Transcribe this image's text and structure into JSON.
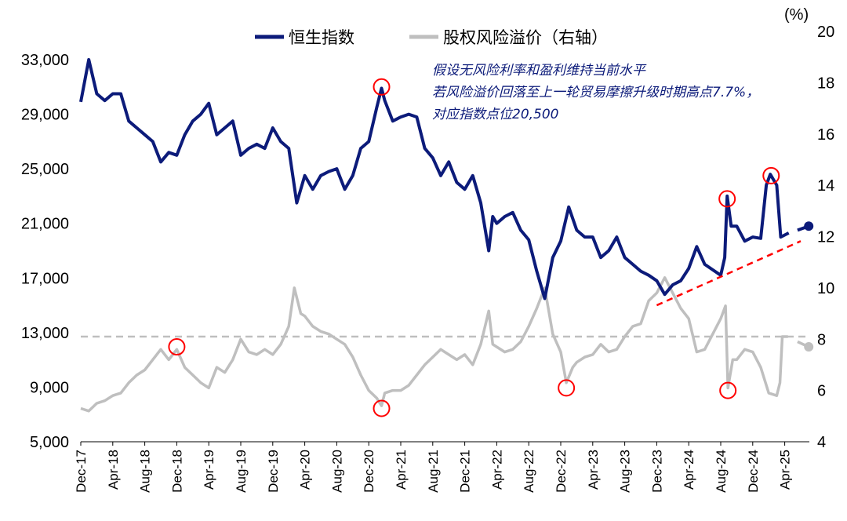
{
  "chart_data": {
    "type": "line",
    "title": "",
    "unit_right": "(%)",
    "x_unit": "months since Dec-17",
    "x_tick_labels": [
      "Dec-17",
      "Apr-18",
      "Aug-18",
      "Dec-18",
      "Apr-19",
      "Aug-19",
      "Dec-19",
      "Apr-20",
      "Aug-20",
      "Dec-20",
      "Apr-21",
      "Aug-21",
      "Dec-21",
      "Apr-22",
      "Aug-22",
      "Dec-22",
      "Apr-23",
      "Aug-23",
      "Dec-23",
      "Apr-24",
      "Aug-24",
      "Dec-24",
      "Apr-25"
    ],
    "y_left": {
      "ticks": [
        "5,000",
        "9,000",
        "13,000",
        "17,000",
        "21,000",
        "25,000",
        "29,000",
        "33,000"
      ],
      "range": [
        5000,
        33000
      ]
    },
    "y_right": {
      "ticks": [
        "4",
        "6",
        "8",
        "10",
        "12",
        "14",
        "16",
        "18",
        "20"
      ],
      "range": [
        4,
        20
      ]
    },
    "legend": {
      "placement": "top-center"
    },
    "series": [
      {
        "name": "恒生指数",
        "axis": "left",
        "color": "#0c1b7a",
        "points": [
          [
            0,
            29900
          ],
          [
            1,
            33000
          ],
          [
            2,
            30500
          ],
          [
            3,
            30000
          ],
          [
            4,
            30500
          ],
          [
            5,
            30500
          ],
          [
            6,
            28500
          ],
          [
            7,
            28000
          ],
          [
            8,
            27500
          ],
          [
            9,
            27000
          ],
          [
            10,
            25500
          ],
          [
            11,
            26200
          ],
          [
            12,
            26000
          ],
          [
            13,
            27500
          ],
          [
            14,
            28500
          ],
          [
            15,
            29000
          ],
          [
            16,
            29800
          ],
          [
            17,
            27500
          ],
          [
            18,
            28000
          ],
          [
            19,
            28500
          ],
          [
            20,
            26000
          ],
          [
            21,
            26500
          ],
          [
            22,
            26800
          ],
          [
            23,
            26500
          ],
          [
            24,
            28000
          ],
          [
            25,
            27000
          ],
          [
            26,
            26500
          ],
          [
            27,
            22500
          ],
          [
            28,
            24500
          ],
          [
            29,
            23500
          ],
          [
            30,
            24500
          ],
          [
            31,
            24800
          ],
          [
            32,
            25000
          ],
          [
            33,
            23500
          ],
          [
            34,
            24500
          ],
          [
            35,
            26500
          ],
          [
            36,
            27000
          ],
          [
            37,
            29500
          ],
          [
            37.6,
            30900
          ],
          [
            38,
            30000
          ],
          [
            39,
            28500
          ],
          [
            40,
            28800
          ],
          [
            41,
            29000
          ],
          [
            42,
            28800
          ],
          [
            43,
            26500
          ],
          [
            44,
            25800
          ],
          [
            45,
            24500
          ],
          [
            46,
            25500
          ],
          [
            47,
            24000
          ],
          [
            48,
            23500
          ],
          [
            49,
            24500
          ],
          [
            50,
            22500
          ],
          [
            51,
            19000
          ],
          [
            51.5,
            21500
          ],
          [
            52,
            21000
          ],
          [
            53,
            21500
          ],
          [
            54,
            21800
          ],
          [
            55,
            20500
          ],
          [
            56,
            19800
          ],
          [
            57,
            17500
          ],
          [
            58,
            15500
          ],
          [
            59,
            18500
          ],
          [
            60,
            19700
          ],
          [
            61,
            22200
          ],
          [
            62,
            20500
          ],
          [
            63,
            20000
          ],
          [
            64,
            20000
          ],
          [
            65,
            18500
          ],
          [
            66,
            19000
          ],
          [
            67,
            20000
          ],
          [
            68,
            18500
          ],
          [
            69,
            18000
          ],
          [
            70,
            17500
          ],
          [
            71,
            17200
          ],
          [
            72,
            16800
          ],
          [
            73,
            15800
          ],
          [
            74,
            16500
          ],
          [
            75,
            16800
          ],
          [
            76,
            17700
          ],
          [
            77,
            19300
          ],
          [
            78,
            18000
          ],
          [
            79,
            17600
          ],
          [
            80,
            17200
          ],
          [
            80.5,
            18500
          ],
          [
            80.8,
            23000
          ],
          [
            81.3,
            20800
          ],
          [
            82,
            20800
          ],
          [
            83,
            19700
          ],
          [
            84,
            20000
          ],
          [
            85,
            19900
          ],
          [
            85.7,
            23800
          ],
          [
            86.2,
            24600
          ],
          [
            87,
            23800
          ],
          [
            87.5,
            20000
          ],
          [
            88.5,
            20300
          ],
          [
            null,
            null
          ],
          [
            89.6,
            20500
          ],
          [
            91,
            20800
          ]
        ]
      },
      {
        "name": "股权风险溢价（右轴）",
        "axis": "right",
        "color": "#bfbfbf",
        "points": [
          [
            0,
            5.3
          ],
          [
            1,
            5.2
          ],
          [
            2,
            5.5
          ],
          [
            3,
            5.6
          ],
          [
            4,
            5.8
          ],
          [
            5,
            5.9
          ],
          [
            6,
            6.3
          ],
          [
            7,
            6.6
          ],
          [
            8,
            6.8
          ],
          [
            9,
            7.2
          ],
          [
            10,
            7.6
          ],
          [
            11,
            7.2
          ],
          [
            12,
            7.6
          ],
          [
            13,
            6.9
          ],
          [
            14,
            6.6
          ],
          [
            15,
            6.3
          ],
          [
            16,
            6.1
          ],
          [
            17,
            6.9
          ],
          [
            18,
            6.7
          ],
          [
            19,
            7.2
          ],
          [
            20,
            8.0
          ],
          [
            21,
            7.5
          ],
          [
            22,
            7.4
          ],
          [
            23,
            7.6
          ],
          [
            24,
            7.4
          ],
          [
            25,
            7.8
          ],
          [
            26,
            8.5
          ],
          [
            26.7,
            10.0
          ],
          [
            27.5,
            9.0
          ],
          [
            28,
            8.9
          ],
          [
            29,
            8.5
          ],
          [
            30,
            8.3
          ],
          [
            31,
            8.2
          ],
          [
            32,
            8.0
          ],
          [
            33,
            7.8
          ],
          [
            34,
            7.3
          ],
          [
            35,
            6.6
          ],
          [
            36,
            6.0
          ],
          [
            37,
            5.7
          ],
          [
            37.6,
            5.4
          ],
          [
            38,
            5.9
          ],
          [
            39,
            6.0
          ],
          [
            40,
            6.0
          ],
          [
            41,
            6.2
          ],
          [
            42,
            6.6
          ],
          [
            43,
            7.0
          ],
          [
            44,
            7.3
          ],
          [
            45,
            7.6
          ],
          [
            46,
            7.4
          ],
          [
            47,
            7.2
          ],
          [
            48,
            7.4
          ],
          [
            49,
            7.0
          ],
          [
            50,
            7.8
          ],
          [
            51,
            9.1
          ],
          [
            51.5,
            7.8
          ],
          [
            52,
            7.7
          ],
          [
            53,
            7.5
          ],
          [
            54,
            7.6
          ],
          [
            55,
            7.9
          ],
          [
            56,
            8.5
          ],
          [
            57,
            9.2
          ],
          [
            58,
            10.0
          ],
          [
            59,
            8.2
          ],
          [
            60,
            7.5
          ],
          [
            60.7,
            6.3
          ],
          [
            61.5,
            6.9
          ],
          [
            62,
            7.1
          ],
          [
            63,
            7.3
          ],
          [
            64,
            7.4
          ],
          [
            65,
            7.8
          ],
          [
            66,
            7.5
          ],
          [
            67,
            7.6
          ],
          [
            68,
            8.1
          ],
          [
            69,
            8.5
          ],
          [
            70,
            8.6
          ],
          [
            71,
            9.5
          ],
          [
            72,
            9.8
          ],
          [
            73,
            10.4
          ],
          [
            74,
            9.8
          ],
          [
            75,
            9.2
          ],
          [
            76,
            8.8
          ],
          [
            77,
            7.5
          ],
          [
            78,
            7.6
          ],
          [
            79,
            8.2
          ],
          [
            80,
            8.8
          ],
          [
            80.6,
            9.3
          ],
          [
            80.9,
            6.1
          ],
          [
            81.5,
            7.2
          ],
          [
            82,
            7.2
          ],
          [
            83,
            7.6
          ],
          [
            84,
            7.5
          ],
          [
            85,
            6.9
          ],
          [
            86,
            5.9
          ],
          [
            87,
            5.8
          ],
          [
            87.4,
            6.3
          ],
          [
            87.7,
            8.1
          ],
          [
            88.4,
            8.1
          ],
          [
            null,
            null
          ],
          [
            89.6,
            7.9
          ],
          [
            91,
            7.7
          ]
        ]
      }
    ],
    "reference_lines": [
      {
        "axis": "right",
        "value": 8.1,
        "style": "dashed",
        "color": "#bfbfbf"
      }
    ],
    "trend_line": {
      "axis": "left",
      "from": [
        72,
        15000
      ],
      "to": [
        90,
        19700
      ],
      "color": "#ff0000",
      "style": "dashed"
    },
    "highlight_circles": [
      {
        "axis": "left",
        "x": 37.6,
        "y": 31000
      },
      {
        "axis": "left",
        "x": 80.8,
        "y": 22800
      },
      {
        "axis": "left",
        "x": 86.3,
        "y": 24500
      },
      {
        "axis": "right",
        "x": 12,
        "y": 7.7
      },
      {
        "axis": "right",
        "x": 37.6,
        "y": 5.3
      },
      {
        "axis": "right",
        "x": 60.7,
        "y": 6.1
      },
      {
        "axis": "right",
        "x": 80.9,
        "y": 6.0
      }
    ],
    "annotation": [
      "假设无风险利率和盈利维持当前水平",
      "若风险溢价回落至上一轮贸易摩擦升级时期高点7.7%，",
      "对应指数点位20,500"
    ]
  }
}
